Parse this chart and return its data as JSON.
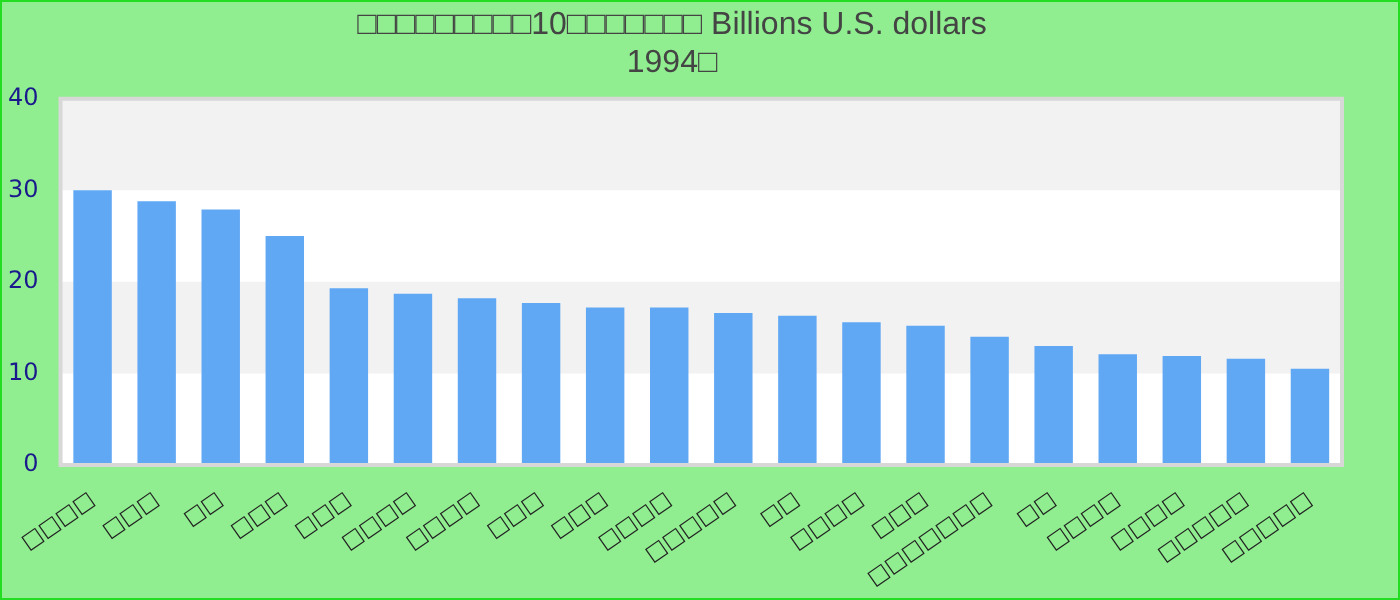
{
  "chart_data": {
    "type": "bar",
    "title": [
      "□□□□□□□□□10□□□□□□□ Billions U.S. dollars",
      "1994□"
    ],
    "categories": [
      "□□□□",
      "□□□",
      "□□",
      "□□□",
      "□□□",
      "□□□□",
      "□□□□",
      "□□□",
      "□□□",
      "□□□□",
      "□□□□□",
      "□□",
      "□□□□",
      "□□□",
      "□□□□□□□",
      "□□",
      "□□□□",
      "□□□□",
      "□□□□□",
      "□□□□□"
    ],
    "values": [
      30,
      28.8,
      27.9,
      25,
      19.3,
      18.7,
      18.2,
      17.7,
      17.2,
      17.2,
      16.6,
      16.3,
      15.6,
      15.2,
      14,
      13,
      12.1,
      11.9,
      11.6,
      10.5
    ],
    "color": "#60a8f4",
    "ylim": [
      0,
      40
    ],
    "yticks": [
      0,
      10,
      20,
      30,
      40
    ],
    "bands": [
      {
        "axis": "y",
        "from": 10,
        "to": 20,
        "color": "#f2f2f2"
      },
      {
        "axis": "y",
        "from": 30,
        "to": 40,
        "color": "#f2f2f2"
      }
    ]
  }
}
